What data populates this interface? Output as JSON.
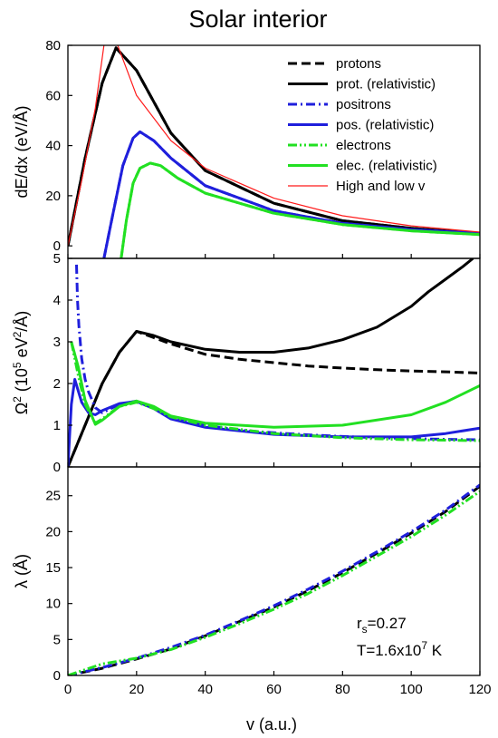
{
  "chart_data": {
    "type": "line",
    "title": "Solar interior",
    "xlabel": "v (a.u.)",
    "xlim": [
      0,
      120
    ],
    "xticks": [
      0,
      20,
      40,
      60,
      80,
      100,
      120
    ],
    "grid": false,
    "legend_position": "top-right",
    "annotation": {
      "rs_text": "r",
      "rs_sub": "s",
      "rs_value": "=0.27",
      "T_text": "T=1.6x10",
      "T_exp": "7",
      "T_unit": " K"
    },
    "panels": [
      {
        "id": "stopping",
        "ylabel": "dE/dx (eV/Å)",
        "ylim": [
          -5,
          80
        ],
        "yticks": [
          0,
          20,
          40,
          60,
          80
        ],
        "series": [
          {
            "name": "protons",
            "color": "#000000",
            "dash": "dash",
            "x": [
              0,
              5,
              10,
              14,
              20,
              30,
              40,
              60,
              80,
              100,
              120
            ],
            "y": [
              0,
              35,
              65,
              79,
              70,
              45,
              30,
              17,
              10,
              7,
              5
            ]
          },
          {
            "name": "prot. (relativistic)",
            "color": "#000000",
            "dash": "solid",
            "x": [
              0,
              5,
              10,
              14,
              20,
              30,
              40,
              60,
              80,
              100,
              120
            ],
            "y": [
              0,
              35,
              65,
              79,
              70,
              45,
              30,
              17,
              10,
              7,
              5
            ]
          },
          {
            "name": "positrons",
            "color": "#1f1fdc",
            "dash": "dashdot",
            "x": [
              10.5,
              13,
              16,
              19,
              21,
              25,
              30,
              40,
              60,
              80,
              100,
              120
            ],
            "y": [
              -5,
              12,
              32,
              43,
              45.5,
              42,
              35,
              24,
              14,
              9,
              6.5,
              5
            ]
          },
          {
            "name": "pos. (relativistic)",
            "color": "#1f1fdc",
            "dash": "solid",
            "x": [
              10.5,
              13,
              16,
              19,
              21,
              25,
              30,
              40,
              60,
              80,
              100,
              120
            ],
            "y": [
              -5,
              12,
              32,
              43,
              45.5,
              42,
              35,
              24,
              14,
              9,
              6.5,
              5
            ]
          },
          {
            "name": "electrons",
            "color": "#22e022",
            "dash": "dashdotdot",
            "x": [
              15.5,
              17,
              19,
              21,
              24,
              27,
              32,
              40,
              60,
              80,
              100,
              120
            ],
            "y": [
              -5,
              10,
              25,
              31,
              33,
              32,
              27,
              21,
              13,
              8.5,
              6,
              4.5
            ]
          },
          {
            "name": "elec. (relativistic)",
            "color": "#22e022",
            "dash": "solid",
            "x": [
              15.5,
              17,
              19,
              21,
              24,
              27,
              32,
              40,
              60,
              80,
              100,
              120
            ],
            "y": [
              -5,
              10,
              25,
              31,
              33,
              32,
              27,
              21,
              13,
              8.5,
              6,
              4.5
            ]
          },
          {
            "name": "High and low v",
            "color": "#ff1a1a",
            "dash": "solid",
            "thin": true,
            "x": [
              0,
              4,
              8,
              10.5
            ],
            "y": [
              0,
              26,
              55,
              80
            ]
          },
          {
            "name": "",
            "color": "#ff1a1a",
            "dash": "solid",
            "thin": true,
            "x": [
              14.5,
              20,
              30,
              40,
              60,
              80,
              100,
              120
            ],
            "y": [
              80,
              60,
              42,
              31,
              19,
              12,
              8,
              5.5
            ]
          }
        ]
      },
      {
        "id": "omega",
        "ylabel_main": "Ω",
        "ylabel_rest": " (10",
        "ylabel_exp1": "2",
        "ylabel_exp2": "5",
        "ylabel_unit": " eV",
        "ylabel_exp3": "2",
        "ylabel_end": "/Å)",
        "ylim": [
          0,
          5
        ],
        "yticks": [
          0,
          1,
          2,
          3,
          4,
          5
        ],
        "series": [
          {
            "name": "protons",
            "color": "#000000",
            "dash": "dash",
            "x": [
              0,
              5,
              10,
              15,
              20,
              25,
              30,
              40,
              50,
              60,
              70,
              80,
              90,
              100,
              110,
              120
            ],
            "y": [
              0,
              1,
              2,
              2.75,
              3.25,
              3.1,
              2.95,
              2.7,
              2.58,
              2.5,
              2.42,
              2.37,
              2.33,
              2.3,
              2.28,
              2.25
            ]
          },
          {
            "name": "prot. (relativistic)",
            "color": "#000000",
            "dash": "solid",
            "x": [
              0,
              5,
              10,
              15,
              20,
              25,
              30,
              40,
              50,
              60,
              70,
              80,
              90,
              100,
              105,
              110,
              115,
              118
            ],
            "y": [
              0,
              1,
              2,
              2.75,
              3.25,
              3.15,
              3.0,
              2.82,
              2.75,
              2.75,
              2.85,
              3.05,
              3.35,
              3.85,
              4.2,
              4.5,
              4.8,
              5
            ]
          },
          {
            "name": "positrons",
            "color": "#1f1fdc",
            "dash": "dashdot",
            "x": [
              2.5,
              2.8,
              3.2,
              4,
              5,
              6,
              8,
              10,
              15,
              20,
              25,
              30,
              40,
              50,
              60,
              70,
              80,
              90,
              100,
              110,
              120
            ],
            "y": [
              4.85,
              4.0,
              3.4,
              2.6,
              2.1,
              1.8,
              1.42,
              1.3,
              1.5,
              1.58,
              1.42,
              1.2,
              1.0,
              0.88,
              0.82,
              0.77,
              0.73,
              0.7,
              0.68,
              0.66,
              0.65
            ]
          },
          {
            "name": "pos. (relativistic)",
            "color": "#1f1fdc",
            "dash": "solid",
            "x": [
              0,
              1,
              2,
              4,
              6,
              8,
              10,
              15,
              20,
              25,
              30,
              40,
              60,
              80,
              100,
              110,
              120
            ],
            "y": [
              0,
              1.5,
              2.1,
              1.55,
              1.3,
              1.25,
              1.35,
              1.52,
              1.57,
              1.4,
              1.15,
              0.95,
              0.78,
              0.72,
              0.72,
              0.8,
              0.93
            ]
          },
          {
            "name": "electrons",
            "color": "#22e022",
            "dash": "dashdotdot",
            "x": [
              1,
              3,
              5,
              8,
              10,
              15,
              20,
              25,
              30,
              40,
              60,
              80,
              100,
              120
            ],
            "y": [
              3,
              2.2,
              1.5,
              1.05,
              1.15,
              1.45,
              1.55,
              1.4,
              1.2,
              1.0,
              0.8,
              0.7,
              0.65,
              0.63
            ]
          },
          {
            "name": "elec. (relativistic)",
            "color": "#22e022",
            "dash": "solid",
            "x": [
              1,
              3,
              5,
              8,
              10,
              15,
              20,
              25,
              30,
              40,
              60,
              80,
              100,
              110,
              120
            ],
            "y": [
              3,
              2.4,
              1.6,
              1.02,
              1.12,
              1.45,
              1.58,
              1.45,
              1.22,
              1.05,
              0.95,
              1.0,
              1.25,
              1.55,
              1.95
            ]
          }
        ]
      },
      {
        "id": "lambda",
        "ylabel": "λ (Å)",
        "ylim": [
          0,
          29
        ],
        "yticks": [
          0,
          5,
          10,
          15,
          20,
          25
        ],
        "series": [
          {
            "name": "protons",
            "color": "#000000",
            "dash": "dash",
            "x": [
              0,
              10,
              20,
              30,
              40,
              50,
              60,
              70,
              80,
              90,
              100,
              110,
              120
            ],
            "y": [
              0,
              1.0,
              2.3,
              3.7,
              5.5,
              7.5,
              9.5,
              11.8,
              14.3,
              17,
              19.8,
              22.8,
              26.3
            ]
          },
          {
            "name": "positrons",
            "color": "#1f1fdc",
            "dash": "dashdot",
            "x": [
              0,
              10,
              20,
              30,
              40,
              50,
              60,
              70,
              80,
              90,
              100,
              110,
              120
            ],
            "y": [
              0,
              1.1,
              2.4,
              3.9,
              5.6,
              7.6,
              9.7,
              12.0,
              14.5,
              17.2,
              20.0,
              23.0,
              26.5
            ]
          },
          {
            "name": "electrons",
            "color": "#22e022",
            "dash": "dashdotdot",
            "x": [
              0,
              10,
              20,
              30,
              40,
              50,
              60,
              70,
              80,
              90,
              100,
              110,
              120
            ],
            "y": [
              0,
              1.6,
              2.4,
              3.6,
              5.3,
              7.2,
              9.2,
              11.4,
              13.9,
              16.6,
              19.3,
              22.3,
              25.6
            ]
          }
        ]
      }
    ]
  }
}
